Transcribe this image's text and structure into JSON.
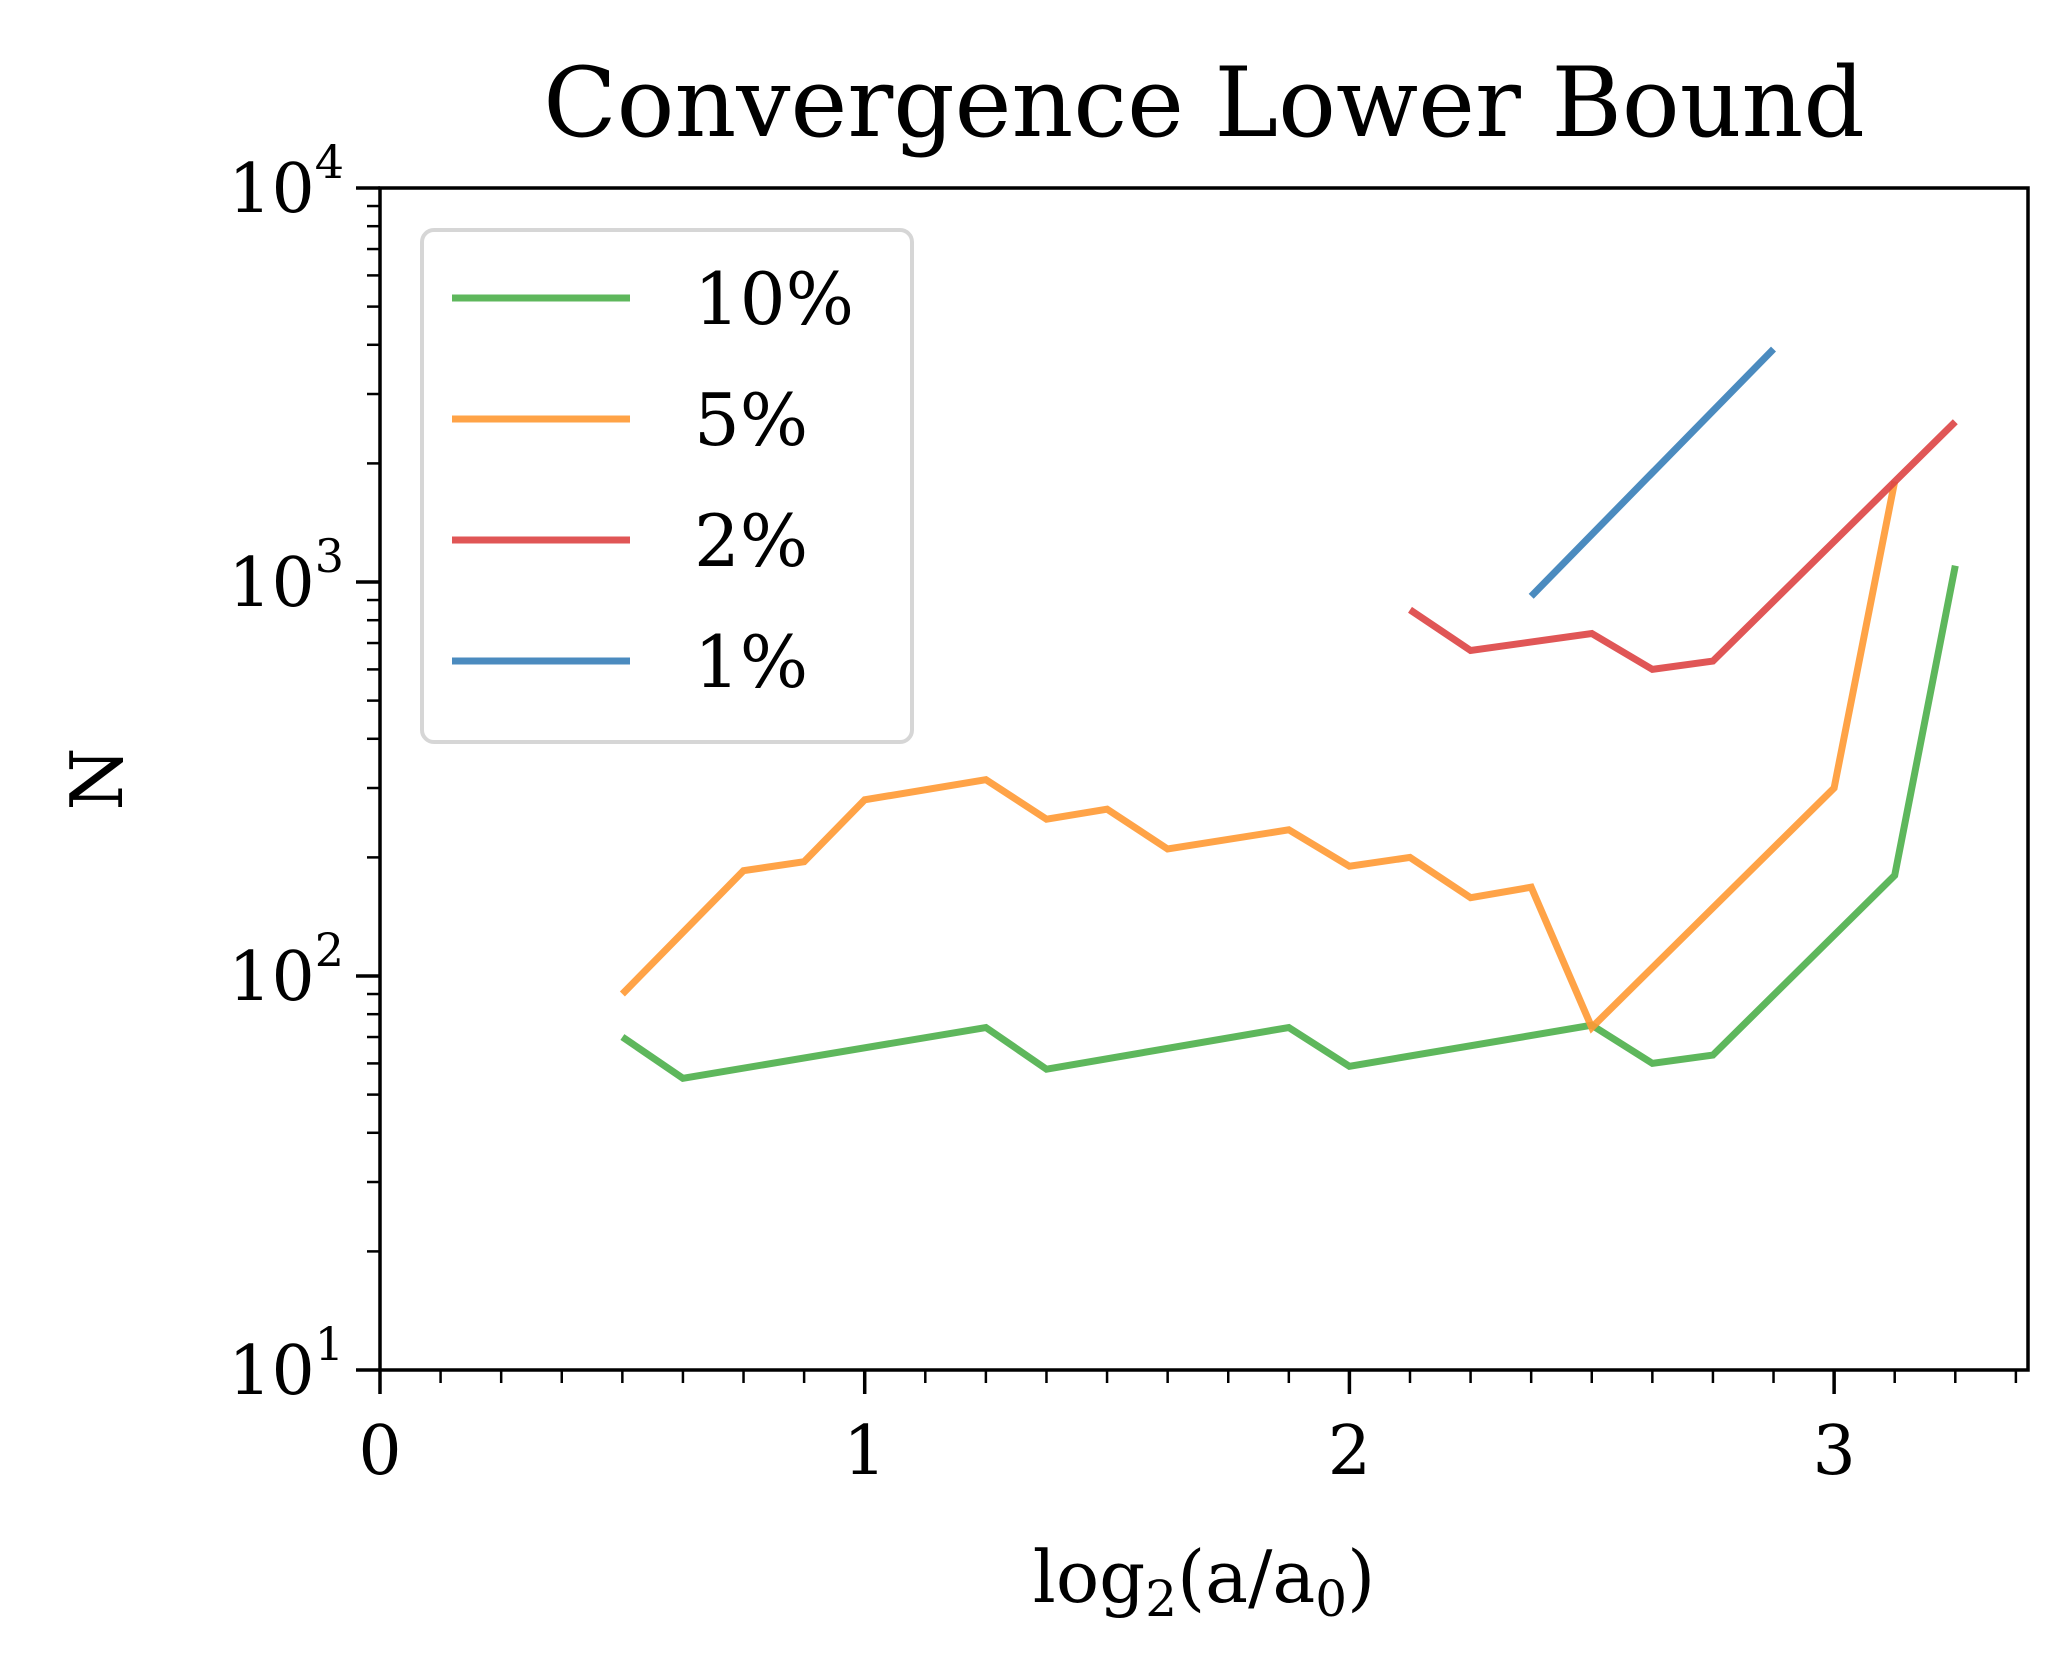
{
  "chart_data": {
    "type": "line",
    "title": "Convergence Lower Bound",
    "xlabel": {
      "main": "log",
      "sub": "2",
      "rest": "(a/a",
      "sub2": "0",
      "end": ")"
    },
    "ylabel": "N",
    "xlim": [
      0,
      3.4
    ],
    "ylim": [
      10,
      10000
    ],
    "yscale": "log",
    "xticks": [
      0,
      1,
      2,
      3
    ],
    "xticks_minor_step": 0.125,
    "yticks": [
      {
        "value": 10,
        "base": "10",
        "exp": "1"
      },
      {
        "value": 100,
        "base": "10",
        "exp": "2"
      },
      {
        "value": 1000,
        "base": "10",
        "exp": "3"
      },
      {
        "value": 10000,
        "base": "10",
        "exp": "4"
      }
    ],
    "grid": false,
    "legend_position": "upper-left",
    "series": [
      {
        "name": "10%",
        "color": "#4daf4a",
        "x": [
          0.5,
          0.625,
          1.25,
          1.375,
          1.875,
          2.0,
          2.5,
          2.625,
          2.75,
          3.125,
          3.25
        ],
        "y": [
          70,
          55,
          74,
          58,
          74,
          59,
          75,
          60,
          63,
          180,
          1100
        ]
      },
      {
        "name": "5%",
        "color": "#ff9933",
        "x": [
          0.5,
          0.75,
          0.875,
          1.0,
          1.25,
          1.375,
          1.5,
          1.625,
          1.875,
          2.0,
          2.125,
          2.25,
          2.375,
          2.5,
          3.0,
          3.125
        ],
        "y": [
          90,
          185,
          195,
          280,
          315,
          250,
          265,
          210,
          235,
          190,
          200,
          158,
          168,
          74,
          300,
          1800
        ]
      },
      {
        "name": "2%",
        "color": "#dd4444",
        "x": [
          2.125,
          2.25,
          2.5,
          2.625,
          2.75,
          3.25
        ],
        "y": [
          850,
          670,
          740,
          600,
          630,
          2550
        ]
      },
      {
        "name": "1%",
        "color": "#377eb8",
        "x": [
          2.375,
          2.875
        ],
        "y": [
          920,
          3900
        ]
      }
    ]
  }
}
